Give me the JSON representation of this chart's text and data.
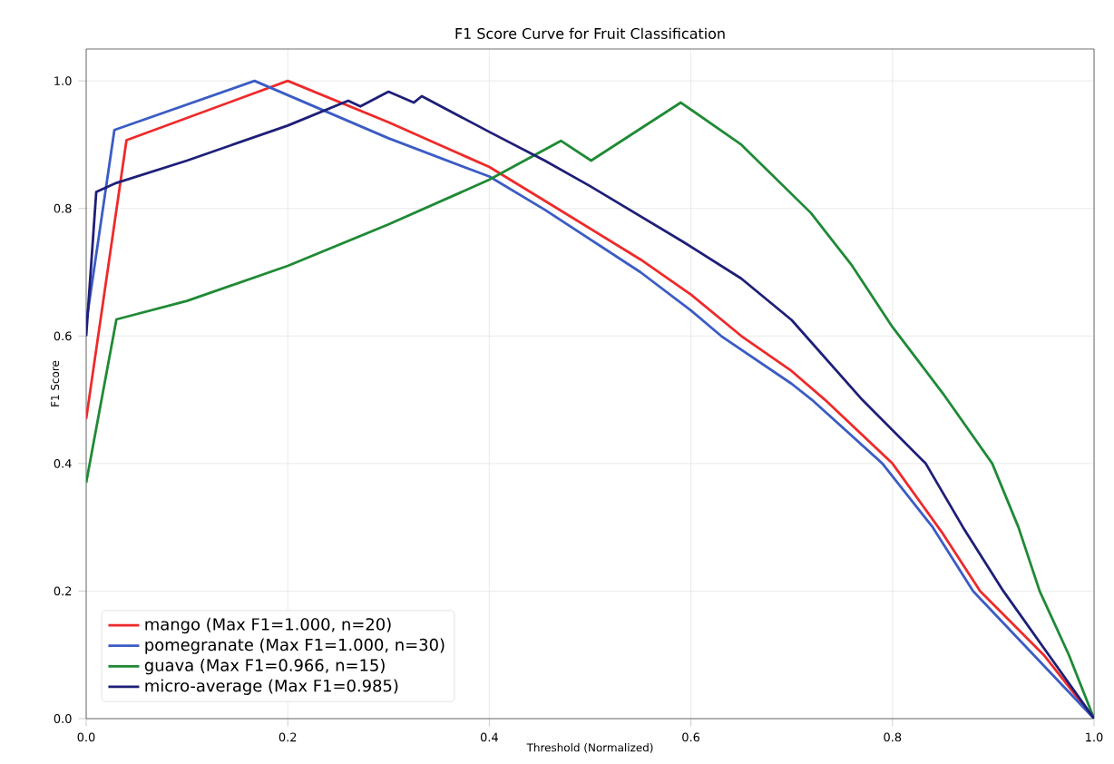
{
  "chart_data": {
    "type": "line",
    "title": "F1 Score Curve for Fruit Classification",
    "xlabel": "Threshold (Normalized)",
    "ylabel": "F1 Score",
    "xlim": [
      0,
      1
    ],
    "ylim": [
      0,
      1.05
    ],
    "xticks": [
      {
        "value": 0,
        "label": "0.0"
      },
      {
        "value": 0.2,
        "label": "0.2"
      },
      {
        "value": 0.4,
        "label": "0.4"
      },
      {
        "value": 0.6,
        "label": "0.6"
      },
      {
        "value": 0.8,
        "label": "0.8"
      },
      {
        "value": 1,
        "label": "1.0"
      }
    ],
    "yticks": [
      {
        "value": 0,
        "label": "0.0"
      },
      {
        "value": 0.2,
        "label": "0.2"
      },
      {
        "value": 0.4,
        "label": "0.4"
      },
      {
        "value": 0.6,
        "label": "0.6"
      },
      {
        "value": 0.8,
        "label": "0.8"
      },
      {
        "value": 1,
        "label": "1.0"
      }
    ],
    "grid": true,
    "legend": "bottom left",
    "marker": "none",
    "line_style": "solid",
    "series": [
      {
        "name": "mango (Max F1=1.000, n=20)",
        "color": "#ee2a2a",
        "x": [
          0,
          0.04,
          0.2,
          0.3,
          0.4,
          0.455,
          0.55,
          0.6,
          0.65,
          0.7,
          0.733,
          0.8,
          0.85,
          0.887,
          0.95,
          1.0
        ],
        "values": [
          0.47,
          0.907,
          1.0,
          0.935,
          0.865,
          0.812,
          0.72,
          0.665,
          0.6,
          0.545,
          0.5,
          0.4,
          0.29,
          0.2,
          0.1,
          0
        ]
      },
      {
        "name": "pomegranate (Max F1=1.000, n=30)",
        "color": "#3b5cc4",
        "x": [
          0,
          0.028,
          0.167,
          0.3,
          0.4,
          0.455,
          0.55,
          0.6,
          0.63,
          0.7,
          0.72,
          0.79,
          0.84,
          0.88,
          0.94,
          1.0
        ],
        "values": [
          0.62,
          0.923,
          1.0,
          0.91,
          0.85,
          0.798,
          0.7,
          0.64,
          0.6,
          0.525,
          0.5,
          0.4,
          0.3,
          0.2,
          0.1,
          0
        ]
      },
      {
        "name": "guava (Max F1=0.966, n=15)",
        "color": "#1f8a35",
        "x": [
          0,
          0.03,
          0.1,
          0.2,
          0.3,
          0.4,
          0.471,
          0.501,
          0.59,
          0.65,
          0.719,
          0.76,
          0.8,
          0.85,
          0.899,
          0.925,
          0.946,
          0.975,
          1.0
        ],
        "values": [
          0.37,
          0.626,
          0.655,
          0.71,
          0.775,
          0.845,
          0.906,
          0.875,
          0.966,
          0.9,
          0.793,
          0.71,
          0.614,
          0.51,
          0.4,
          0.3,
          0.2,
          0.1,
          0
        ]
      },
      {
        "name": "micro-average (Max F1=0.985)",
        "color": "#1e1f78",
        "x": [
          0,
          0.01,
          0.03,
          0.1,
          0.2,
          0.26,
          0.272,
          0.3,
          0.325,
          0.333,
          0.4,
          0.455,
          0.5,
          0.593,
          0.65,
          0.7,
          0.77,
          0.833,
          0.87,
          0.91,
          0.955,
          1.0
        ],
        "values": [
          0.6,
          0.826,
          0.84,
          0.875,
          0.93,
          0.969,
          0.96,
          0.983,
          0.966,
          0.976,
          0.92,
          0.875,
          0.835,
          0.747,
          0.69,
          0.625,
          0.5,
          0.4,
          0.3,
          0.2,
          0.1,
          0
        ]
      }
    ]
  }
}
